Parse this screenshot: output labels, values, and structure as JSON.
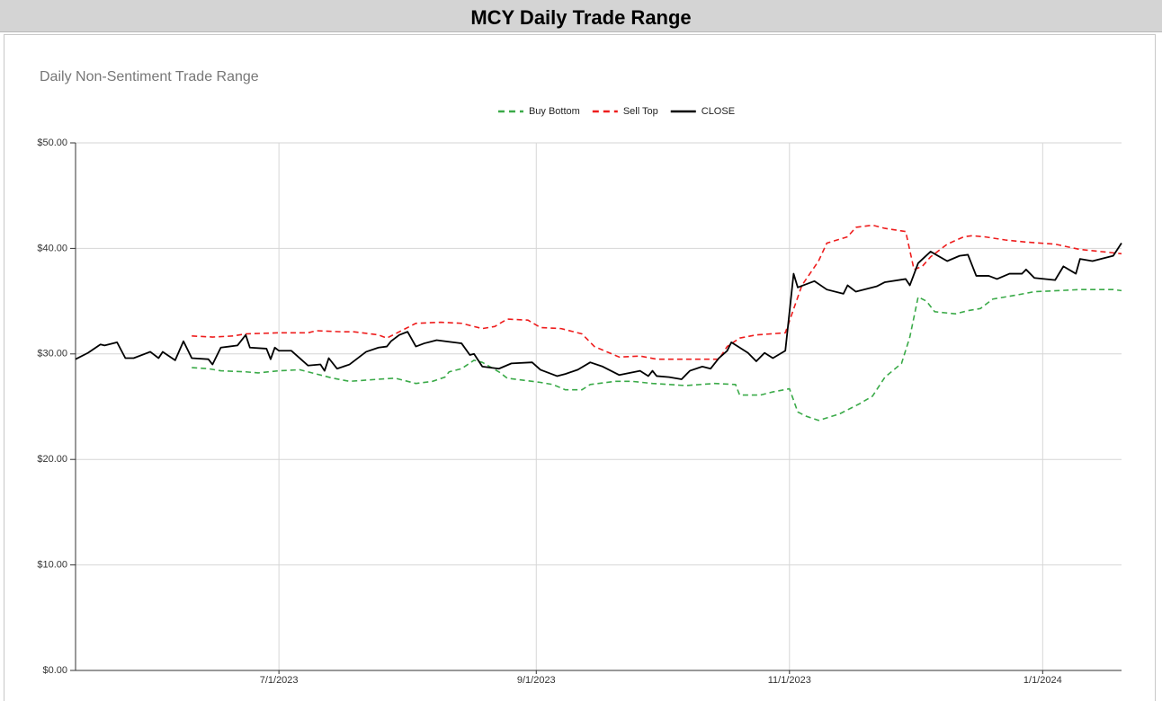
{
  "header": {
    "title": "MCY Daily Trade Range"
  },
  "chart_data": {
    "type": "line",
    "title": "Daily Non-Sentiment Trade Range",
    "xlim": [
      "2023-05-13",
      "2024-01-20"
    ],
    "xticks": [
      {
        "value": "2023-07-01",
        "label": "7/1/2023"
      },
      {
        "value": "2023-09-01",
        "label": "9/1/2023"
      },
      {
        "value": "2023-11-01",
        "label": "11/1/2023"
      },
      {
        "value": "2024-01-01",
        "label": "1/1/2024"
      }
    ],
    "ylim": [
      0,
      50
    ],
    "yticks": [
      {
        "value": 0,
        "label": "$0.00"
      },
      {
        "value": 10,
        "label": "$10.00"
      },
      {
        "value": 20,
        "label": "$20.00"
      },
      {
        "value": 30,
        "label": "$30.00"
      },
      {
        "value": 40,
        "label": "$40.00"
      },
      {
        "value": 50,
        "label": "$50.00"
      }
    ],
    "grid": true,
    "legend": "top",
    "series": [
      {
        "name": "Buy Bottom",
        "color": "#3aaa48",
        "dash": true,
        "x": [
          "2023-06-10",
          "2023-06-14",
          "2023-06-17",
          "2023-06-23",
          "2023-06-26",
          "2023-07-01",
          "2023-07-06",
          "2023-07-10",
          "2023-07-14",
          "2023-07-18",
          "2023-07-25",
          "2023-07-29",
          "2023-08-03",
          "2023-08-07",
          "2023-08-10",
          "2023-08-11",
          "2023-08-14",
          "2023-08-17",
          "2023-08-19",
          "2023-08-23",
          "2023-08-25",
          "2023-09-02",
          "2023-09-05",
          "2023-09-08",
          "2023-09-12",
          "2023-09-14",
          "2023-09-20",
          "2023-09-24",
          "2023-09-29",
          "2023-10-03",
          "2023-10-07",
          "2023-10-14",
          "2023-10-19",
          "2023-10-20",
          "2023-10-25",
          "2023-10-28",
          "2023-11-01",
          "2023-11-03",
          "2023-11-05",
          "2023-11-08",
          "2023-11-13",
          "2023-11-18",
          "2023-11-21",
          "2023-11-24",
          "2023-11-28",
          "2023-11-30",
          "2023-12-02",
          "2023-12-04",
          "2023-12-06",
          "2023-12-11",
          "2023-12-14",
          "2023-12-17",
          "2023-12-20",
          "2023-12-26",
          "2023-12-30",
          "2024-01-05",
          "2024-01-10",
          "2024-01-18",
          "2024-01-20"
        ],
        "values": [
          28.7,
          28.6,
          28.4,
          28.3,
          28.2,
          28.4,
          28.5,
          28.1,
          27.7,
          27.4,
          27.6,
          27.7,
          27.2,
          27.4,
          27.8,
          28.3,
          28.6,
          29.4,
          29.2,
          28.3,
          27.7,
          27.3,
          27.1,
          26.6,
          26.6,
          27.1,
          27.4,
          27.4,
          27.2,
          27.1,
          27.0,
          27.2,
          27.1,
          26.1,
          26.1,
          26.4,
          26.7,
          24.5,
          24.1,
          23.7,
          24.3,
          25.3,
          26.0,
          27.8,
          29.1,
          31.6,
          35.4,
          35.0,
          34.0,
          33.8,
          34.1,
          34.3,
          35.2,
          35.6,
          35.9,
          36.0,
          36.1,
          36.1,
          36.0
        ]
      },
      {
        "name": "Sell Top",
        "color": "#ee1c1c",
        "dash": true,
        "x": [
          "2023-06-10",
          "2023-06-15",
          "2023-06-20",
          "2023-06-23",
          "2023-07-01",
          "2023-07-08",
          "2023-07-10",
          "2023-07-16",
          "2023-07-19",
          "2023-07-25",
          "2023-07-27",
          "2023-07-29",
          "2023-08-03",
          "2023-08-09",
          "2023-08-14",
          "2023-08-19",
          "2023-08-22",
          "2023-08-25",
          "2023-08-30",
          "2023-09-02",
          "2023-09-07",
          "2023-09-12",
          "2023-09-15",
          "2023-09-21",
          "2023-09-26",
          "2023-09-30",
          "2023-10-08",
          "2023-10-15",
          "2023-10-17",
          "2023-10-20",
          "2023-10-24",
          "2023-10-31",
          "2023-11-04",
          "2023-11-08",
          "2023-11-10",
          "2023-11-15",
          "2023-11-17",
          "2023-11-21",
          "2023-11-24",
          "2023-11-29",
          "2023-12-01",
          "2023-12-03",
          "2023-12-05",
          "2023-12-09",
          "2023-12-13",
          "2023-12-15",
          "2023-12-18",
          "2023-12-23",
          "2023-12-28",
          "2024-01-04",
          "2024-01-10",
          "2024-01-20"
        ],
        "values": [
          31.7,
          31.6,
          31.7,
          31.9,
          32.0,
          32.0,
          32.2,
          32.1,
          32.1,
          31.8,
          31.5,
          31.9,
          32.9,
          33.0,
          32.9,
          32.4,
          32.6,
          33.3,
          33.2,
          32.5,
          32.4,
          31.9,
          30.7,
          29.7,
          29.8,
          29.5,
          29.5,
          29.5,
          30.7,
          31.5,
          31.8,
          32.0,
          36.5,
          38.8,
          40.5,
          41.1,
          42.0,
          42.2,
          41.9,
          41.6,
          38.0,
          38.3,
          39.2,
          40.4,
          41.1,
          41.2,
          41.1,
          40.8,
          40.6,
          40.4,
          39.9,
          39.5
        ]
      },
      {
        "name": "CLOSE",
        "color": "#000000",
        "dash": false,
        "x": [
          "2023-05-13",
          "2023-05-16",
          "2023-05-19",
          "2023-05-20",
          "2023-05-23",
          "2023-05-25",
          "2023-05-27",
          "2023-05-31",
          "2023-06-02",
          "2023-06-03",
          "2023-06-06",
          "2023-06-08",
          "2023-06-10",
          "2023-06-14",
          "2023-06-15",
          "2023-06-17",
          "2023-06-21",
          "2023-06-23",
          "2023-06-24",
          "2023-06-28",
          "2023-06-29",
          "2023-06-30",
          "2023-07-01",
          "2023-07-04",
          "2023-07-08",
          "2023-07-11",
          "2023-07-12",
          "2023-07-13",
          "2023-07-15",
          "2023-07-18",
          "2023-07-22",
          "2023-07-25",
          "2023-07-27",
          "2023-07-28",
          "2023-07-30",
          "2023-08-01",
          "2023-08-03",
          "2023-08-05",
          "2023-08-08",
          "2023-08-14",
          "2023-08-16",
          "2023-08-17",
          "2023-08-19",
          "2023-08-23",
          "2023-08-26",
          "2023-08-31",
          "2023-09-02",
          "2023-09-06",
          "2023-09-08",
          "2023-09-11",
          "2023-09-14",
          "2023-09-17",
          "2023-09-21",
          "2023-09-26",
          "2023-09-28",
          "2023-09-29",
          "2023-09-30",
          "2023-10-03",
          "2023-10-06",
          "2023-10-08",
          "2023-10-11",
          "2023-10-13",
          "2023-10-15",
          "2023-10-17",
          "2023-10-18",
          "2023-10-22",
          "2023-10-24",
          "2023-10-26",
          "2023-10-28",
          "2023-10-31",
          "2023-11-02",
          "2023-11-03",
          "2023-11-07",
          "2023-11-10",
          "2023-11-14",
          "2023-11-15",
          "2023-11-17",
          "2023-11-22",
          "2023-11-24",
          "2023-11-29",
          "2023-11-30",
          "2023-12-02",
          "2023-12-05",
          "2023-12-09",
          "2023-12-12",
          "2023-12-14",
          "2023-12-16",
          "2023-12-19",
          "2023-12-21",
          "2023-12-24",
          "2023-12-27",
          "2023-12-28",
          "2023-12-30",
          "2024-01-04",
          "2024-01-06",
          "2024-01-09",
          "2024-01-10",
          "2024-01-13",
          "2024-01-18",
          "2024-01-20"
        ],
        "values": [
          29.5,
          30.1,
          30.9,
          30.8,
          31.1,
          29.6,
          29.6,
          30.2,
          29.6,
          30.2,
          29.4,
          31.2,
          29.6,
          29.5,
          29.0,
          30.6,
          30.8,
          31.8,
          30.6,
          30.5,
          29.5,
          30.6,
          30.3,
          30.3,
          28.9,
          29.0,
          28.4,
          29.6,
          28.6,
          29.0,
          30.2,
          30.6,
          30.7,
          31.2,
          31.8,
          32.1,
          30.7,
          31.0,
          31.3,
          31.0,
          29.9,
          30.0,
          28.8,
          28.6,
          29.1,
          29.2,
          28.5,
          27.9,
          28.1,
          28.5,
          29.2,
          28.8,
          28.0,
          28.4,
          27.9,
          28.4,
          27.9,
          27.8,
          27.6,
          28.4,
          28.8,
          28.6,
          29.6,
          30.3,
          31.1,
          30.1,
          29.3,
          30.1,
          29.6,
          30.3,
          37.6,
          36.3,
          36.9,
          36.1,
          35.7,
          36.5,
          35.9,
          36.4,
          36.8,
          37.1,
          36.5,
          38.6,
          39.7,
          38.8,
          39.3,
          39.4,
          37.4,
          37.4,
          37.1,
          37.6,
          37.6,
          38.0,
          37.2,
          37.0,
          38.3,
          37.6,
          39.0,
          38.8,
          39.3,
          40.5
        ]
      }
    ]
  }
}
